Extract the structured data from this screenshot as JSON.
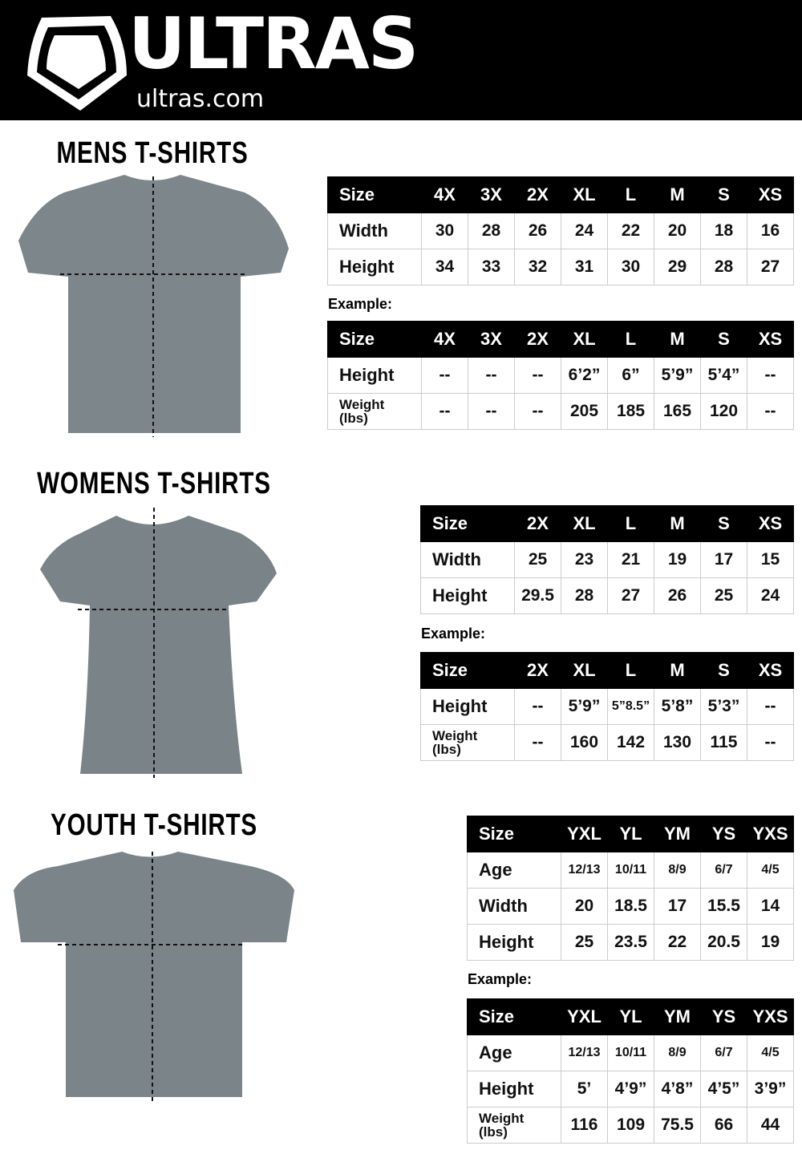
{
  "header": {
    "brand": "ULTRAS",
    "site": "ultras.com",
    "background": "#000000"
  },
  "sections": [
    {
      "title": "MENS T-SHIRTS",
      "example_label": "Example:",
      "measure": {
        "header": [
          "Size",
          "4X",
          "3X",
          "2X",
          "XL",
          "L",
          "M",
          "S",
          "XS"
        ],
        "rows": [
          [
            "Width",
            "30",
            "28",
            "26",
            "24",
            "22",
            "20",
            "18",
            "16"
          ],
          [
            "Height",
            "34",
            "33",
            "32",
            "31",
            "30",
            "29",
            "28",
            "27"
          ]
        ]
      },
      "example": {
        "header": [
          "Size",
          "4X",
          "3X",
          "2X",
          "XL",
          "L",
          "M",
          "S",
          "XS"
        ],
        "rows": [
          [
            "Height",
            "--",
            "--",
            "--",
            "6’2”",
            "6”",
            "5’9”",
            "5’4”",
            "--"
          ],
          [
            "Weight (lbs)",
            "--",
            "--",
            "--",
            "205",
            "185",
            "165",
            "120",
            "--"
          ]
        ]
      }
    },
    {
      "title": "WOMENS T-SHIRTS",
      "example_label": "Example:",
      "measure": {
        "header": [
          "Size",
          "2X",
          "XL",
          "L",
          "M",
          "S",
          "XS"
        ],
        "rows": [
          [
            "Width",
            "25",
            "23",
            "21",
            "19",
            "17",
            "15"
          ],
          [
            "Height",
            "29.5",
            "28",
            "27",
            "26",
            "25",
            "24"
          ]
        ]
      },
      "example": {
        "header": [
          "Size",
          "2X",
          "XL",
          "L",
          "M",
          "S",
          "XS"
        ],
        "rows": [
          [
            "Height",
            "--",
            "5’9”",
            "5”8.5”",
            "5’8”",
            "5’3”",
            "--"
          ],
          [
            "Weight (lbs)",
            "--",
            "160",
            "142",
            "130",
            "115",
            "--"
          ]
        ]
      }
    },
    {
      "title": "YOUTH T-SHIRTS",
      "example_label": "Example:",
      "measure": {
        "header": [
          "Size",
          "YXL",
          "YL",
          "YM",
          "YS",
          "YXS"
        ],
        "rows": [
          [
            "Age",
            "12/13",
            "10/11",
            "8/9",
            "6/7",
            "4/5"
          ],
          [
            "Width",
            "20",
            "18.5",
            "17",
            "15.5",
            "14"
          ],
          [
            "Height",
            "25",
            "23.5",
            "22",
            "20.5",
            "19"
          ]
        ]
      },
      "example": {
        "header": [
          "Size",
          "YXL",
          "YL",
          "YM",
          "YS",
          "YXS"
        ],
        "rows": [
          [
            "Age",
            "12/13",
            "10/11",
            "8/9",
            "6/7",
            "4/5"
          ],
          [
            "Height",
            "5’",
            "4’9”",
            "4’8”",
            "4’5”",
            "3’9”"
          ],
          [
            "Weight (lbs)",
            "116",
            "109",
            "75.5",
            "66",
            "44"
          ]
        ]
      }
    }
  ]
}
